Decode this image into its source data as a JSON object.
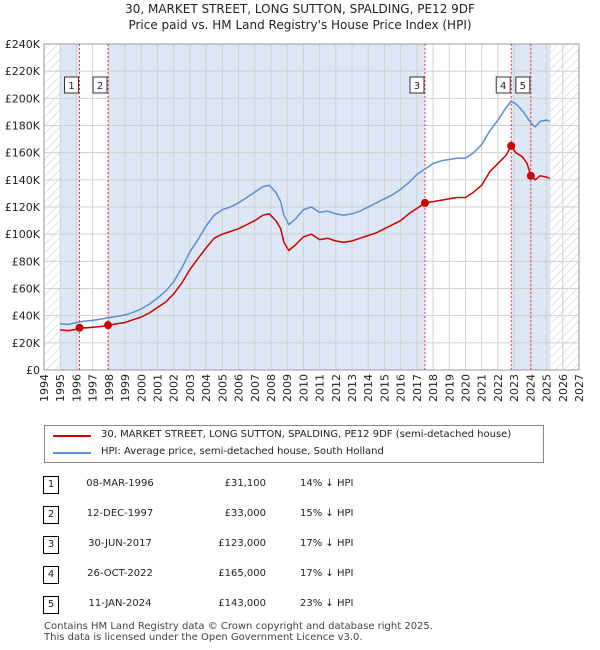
{
  "title_line1": "30, MARKET STREET, LONG SUTTON, SPALDING, PE12 9DF",
  "title_line2": "Price paid vs. HM Land Registry's House Price Index (HPI)",
  "colors": {
    "hpi": "#5b8fd1",
    "price": "#cc0000",
    "shade": "#dde7f6",
    "vline": "#e04040"
  },
  "chart_data": {
    "type": "line",
    "title": "30, MARKET STREET, LONG SUTTON, SPALDING, PE12 9DF",
    "subtitle": "Price paid vs. HM Land Registry's House Price Index (HPI)",
    "xlabel": "",
    "ylabel": "",
    "xlim": [
      1994,
      2027
    ],
    "ylim": [
      0,
      240000
    ],
    "y_ticks": [
      0,
      20000,
      40000,
      60000,
      80000,
      100000,
      120000,
      140000,
      160000,
      180000,
      200000,
      220000,
      240000
    ],
    "y_tick_labels": [
      "£0",
      "£20K",
      "£40K",
      "£60K",
      "£80K",
      "£100K",
      "£120K",
      "£140K",
      "£160K",
      "£180K",
      "£200K",
      "£220K",
      "£240K"
    ],
    "x_ticks": [
      1994,
      1995,
      1996,
      1997,
      1998,
      1999,
      2000,
      2001,
      2002,
      2003,
      2004,
      2005,
      2006,
      2007,
      2008,
      2009,
      2010,
      2011,
      2012,
      2013,
      2014,
      2015,
      2016,
      2017,
      2018,
      2019,
      2020,
      2021,
      2022,
      2023,
      2024,
      2025,
      2026,
      2027
    ],
    "grid": true,
    "shaded_ranges": [
      [
        1995.0,
        1996.19
      ],
      [
        1997.95,
        2017.5
      ],
      [
        2022.82,
        2025.25
      ]
    ],
    "hatched_ranges": [
      [
        1994,
        1995.0
      ],
      [
        2025.25,
        2027
      ]
    ],
    "series": [
      {
        "name": "30, MARKET STREET, LONG SUTTON, SPALDING, PE12 9DF (semi-detached house)",
        "color": "#cc0000",
        "points": [
          [
            1995.0,
            29500
          ],
          [
            1995.5,
            29000
          ],
          [
            1996.0,
            30000
          ],
          [
            1996.19,
            31100
          ],
          [
            1996.6,
            31000
          ],
          [
            1997.0,
            31500
          ],
          [
            1997.5,
            32000
          ],
          [
            1997.95,
            33000
          ],
          [
            1998.5,
            34000
          ],
          [
            1999.0,
            35000
          ],
          [
            1999.5,
            37000
          ],
          [
            2000.0,
            39000
          ],
          [
            2000.5,
            42000
          ],
          [
            2001.0,
            46000
          ],
          [
            2001.5,
            50000
          ],
          [
            2002.0,
            56000
          ],
          [
            2002.5,
            64000
          ],
          [
            2003.0,
            74000
          ],
          [
            2003.5,
            82000
          ],
          [
            2004.0,
            90000
          ],
          [
            2004.5,
            97000
          ],
          [
            2005.0,
            100000
          ],
          [
            2005.5,
            102000
          ],
          [
            2006.0,
            104000
          ],
          [
            2006.5,
            107000
          ],
          [
            2007.0,
            110000
          ],
          [
            2007.5,
            114000
          ],
          [
            2007.9,
            115000
          ],
          [
            2008.3,
            110000
          ],
          [
            2008.6,
            104000
          ],
          [
            2008.8,
            94000
          ],
          [
            2009.1,
            88000
          ],
          [
            2009.5,
            92000
          ],
          [
            2010.0,
            98000
          ],
          [
            2010.5,
            100000
          ],
          [
            2011.0,
            96000
          ],
          [
            2011.5,
            97000
          ],
          [
            2012.0,
            95000
          ],
          [
            2012.5,
            94000
          ],
          [
            2013.0,
            95000
          ],
          [
            2013.5,
            97000
          ],
          [
            2014.0,
            99000
          ],
          [
            2014.5,
            101000
          ],
          [
            2015.0,
            104000
          ],
          [
            2015.5,
            107000
          ],
          [
            2016.0,
            110000
          ],
          [
            2016.5,
            115000
          ],
          [
            2017.0,
            119000
          ],
          [
            2017.5,
            123000
          ],
          [
            2018.0,
            124000
          ],
          [
            2018.5,
            125000
          ],
          [
            2019.0,
            126000
          ],
          [
            2019.5,
            127000
          ],
          [
            2020.0,
            127000
          ],
          [
            2020.5,
            131000
          ],
          [
            2021.0,
            136000
          ],
          [
            2021.5,
            146000
          ],
          [
            2022.0,
            152000
          ],
          [
            2022.5,
            158000
          ],
          [
            2022.82,
            165000
          ],
          [
            2023.1,
            160000
          ],
          [
            2023.5,
            157000
          ],
          [
            2023.8,
            152000
          ],
          [
            2024.03,
            143000
          ],
          [
            2024.3,
            140000
          ],
          [
            2024.6,
            143000
          ],
          [
            2025.0,
            142000
          ],
          [
            2025.2,
            141000
          ]
        ]
      },
      {
        "name": "HPI: Average price, semi-detached house, South Holland",
        "color": "#5b8fd1",
        "points": [
          [
            1995.0,
            34000
          ],
          [
            1995.5,
            33500
          ],
          [
            1996.0,
            35000
          ],
          [
            1996.5,
            36000
          ],
          [
            1997.0,
            36500
          ],
          [
            1997.5,
            37500
          ],
          [
            1998.0,
            38500
          ],
          [
            1998.5,
            39500
          ],
          [
            1999.0,
            40500
          ],
          [
            1999.5,
            42500
          ],
          [
            2000.0,
            45000
          ],
          [
            2000.5,
            48500
          ],
          [
            2001.0,
            53000
          ],
          [
            2001.5,
            58000
          ],
          [
            2002.0,
            65000
          ],
          [
            2002.5,
            75000
          ],
          [
            2003.0,
            87000
          ],
          [
            2003.5,
            96000
          ],
          [
            2004.0,
            106000
          ],
          [
            2004.5,
            114000
          ],
          [
            2005.0,
            118000
          ],
          [
            2005.5,
            120000
          ],
          [
            2006.0,
            123000
          ],
          [
            2006.5,
            127000
          ],
          [
            2007.0,
            131000
          ],
          [
            2007.5,
            135000
          ],
          [
            2007.9,
            136000
          ],
          [
            2008.3,
            131000
          ],
          [
            2008.6,
            124000
          ],
          [
            2008.8,
            114000
          ],
          [
            2009.1,
            107000
          ],
          [
            2009.5,
            111000
          ],
          [
            2010.0,
            118000
          ],
          [
            2010.5,
            120000
          ],
          [
            2011.0,
            116000
          ],
          [
            2011.5,
            117000
          ],
          [
            2012.0,
            115000
          ],
          [
            2012.5,
            114000
          ],
          [
            2013.0,
            115000
          ],
          [
            2013.5,
            117000
          ],
          [
            2014.0,
            120000
          ],
          [
            2014.5,
            123000
          ],
          [
            2015.0,
            126000
          ],
          [
            2015.5,
            129000
          ],
          [
            2016.0,
            133000
          ],
          [
            2016.5,
            138000
          ],
          [
            2017.0,
            144000
          ],
          [
            2017.5,
            148000
          ],
          [
            2018.0,
            152000
          ],
          [
            2018.5,
            154000
          ],
          [
            2019.0,
            155000
          ],
          [
            2019.5,
            156000
          ],
          [
            2020.0,
            156000
          ],
          [
            2020.5,
            160000
          ],
          [
            2021.0,
            166000
          ],
          [
            2021.5,
            176000
          ],
          [
            2022.0,
            184000
          ],
          [
            2022.5,
            193000
          ],
          [
            2022.82,
            198000
          ],
          [
            2023.1,
            196000
          ],
          [
            2023.5,
            191000
          ],
          [
            2023.8,
            186000
          ],
          [
            2024.03,
            182000
          ],
          [
            2024.3,
            179000
          ],
          [
            2024.6,
            183000
          ],
          [
            2025.0,
            184000
          ],
          [
            2025.2,
            183000
          ]
        ]
      }
    ],
    "sales": [
      {
        "n": "1",
        "x": 1996.19,
        "y": 31100
      },
      {
        "n": "2",
        "x": 1997.95,
        "y": 33000
      },
      {
        "n": "3",
        "x": 2017.5,
        "y": 123000
      },
      {
        "n": "4",
        "x": 2022.82,
        "y": 165000
      },
      {
        "n": "5",
        "x": 2024.03,
        "y": 143000
      }
    ]
  },
  "legend": {
    "price_label": "30, MARKET STREET, LONG SUTTON, SPALDING, PE12 9DF (semi-detached house)",
    "hpi_label": "HPI: Average price, semi-detached house, South Holland"
  },
  "transactions": [
    {
      "n": "1",
      "date": "08-MAR-1996",
      "price": "£31,100",
      "hpi": "14% ↓ HPI"
    },
    {
      "n": "2",
      "date": "12-DEC-1997",
      "price": "£33,000",
      "hpi": "15% ↓ HPI"
    },
    {
      "n": "3",
      "date": "30-JUN-2017",
      "price": "£123,000",
      "hpi": "17% ↓ HPI"
    },
    {
      "n": "4",
      "date": "26-OCT-2022",
      "price": "£165,000",
      "hpi": "17% ↓ HPI"
    },
    {
      "n": "5",
      "date": "11-JAN-2024",
      "price": "£143,000",
      "hpi": "23% ↓ HPI"
    }
  ],
  "footer": {
    "line1": "Contains HM Land Registry data © Crown copyright and database right 2025.",
    "line2": "This data is licensed under the Open Government Licence v3.0."
  }
}
